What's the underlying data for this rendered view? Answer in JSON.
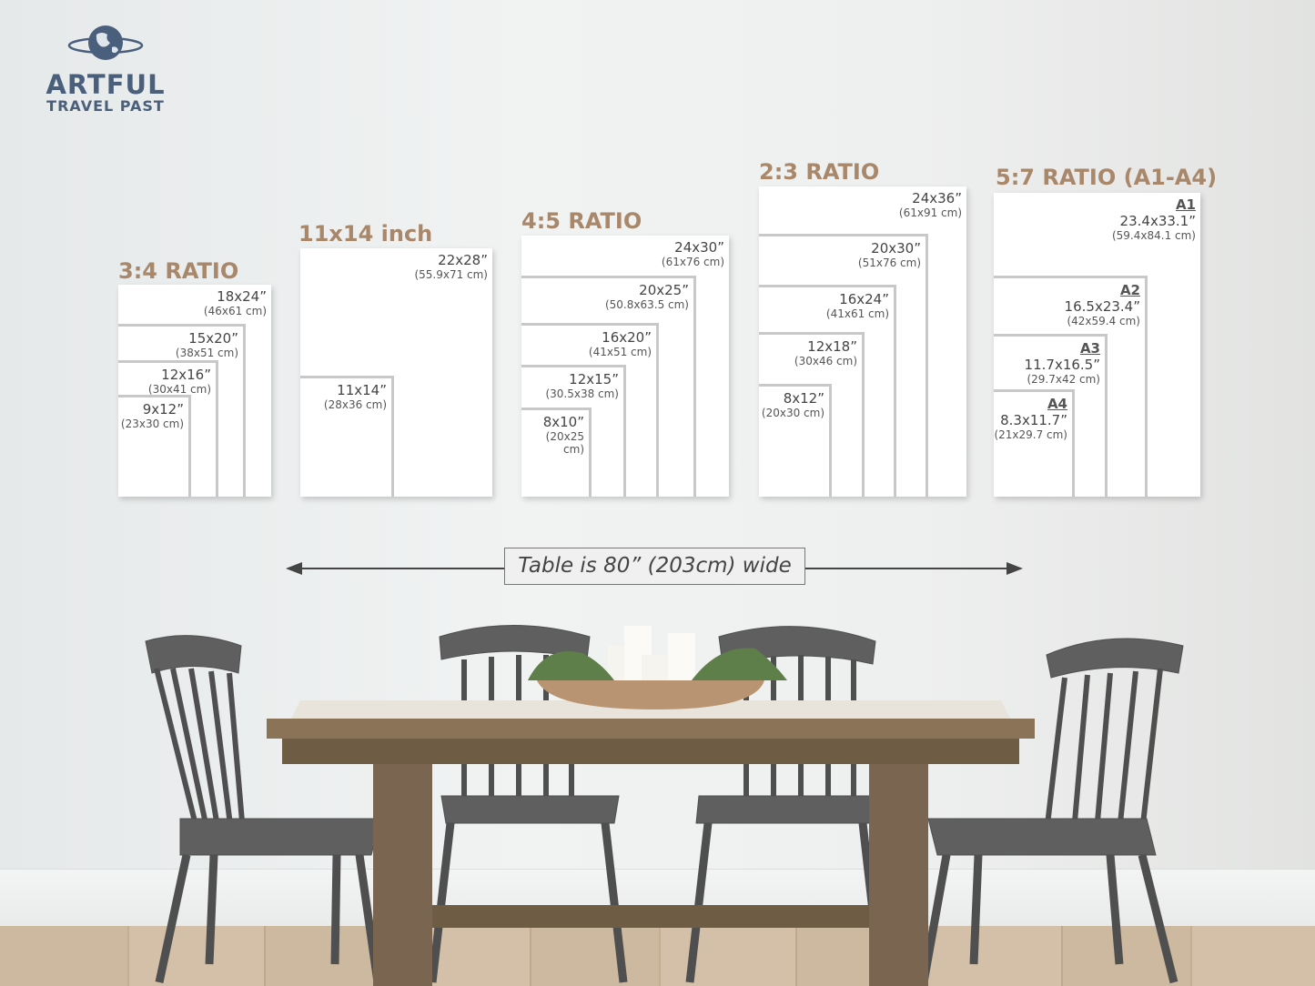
{
  "logo": {
    "line1": "ARTFUL",
    "line2": "TRAVEL PAST",
    "icon": "globe-icon"
  },
  "groups": [
    {
      "label": "3:4 RATIO",
      "sizes": [
        {
          "in": "18x24”",
          "cm": "(46x61 cm)"
        },
        {
          "in": "15x20”",
          "cm": "(38x51 cm)"
        },
        {
          "in": "12x16”",
          "cm": "(30x41 cm)"
        },
        {
          "in": "9x12”",
          "cm": "(23x30 cm)"
        }
      ]
    },
    {
      "label": "11x14 inch",
      "sizes": [
        {
          "in": "22x28”",
          "cm": "(55.9x71 cm)"
        },
        {
          "in": "11x14”",
          "cm": "(28x36 cm)"
        }
      ]
    },
    {
      "label": "4:5 RATIO",
      "sizes": [
        {
          "in": "24x30”",
          "cm": "(61x76 cm)"
        },
        {
          "in": "20x25”",
          "cm": "(50.8x63.5 cm)"
        },
        {
          "in": "16x20”",
          "cm": "(41x51 cm)"
        },
        {
          "in": "12x15”",
          "cm": "(30.5x38 cm)"
        },
        {
          "in": "8x10”",
          "cm": "(20x25 cm)"
        }
      ]
    },
    {
      "label": "2:3 RATIO",
      "sizes": [
        {
          "in": "24x36”",
          "cm": "(61x91 cm)"
        },
        {
          "in": "20x30”",
          "cm": "(51x76 cm)"
        },
        {
          "in": "16x24”",
          "cm": "(41x61 cm)"
        },
        {
          "in": "12x18”",
          "cm": "(30x46 cm)"
        },
        {
          "in": "8x12”",
          "cm": "(20x30 cm)"
        }
      ]
    },
    {
      "label": "5:7 RATIO (A1-A4)",
      "sizes": [
        {
          "a": "A1",
          "in": "23.4x33.1”",
          "cm": "(59.4x84.1 cm)"
        },
        {
          "a": "A2",
          "in": "16.5x23.4”",
          "cm": "(42x59.4 cm)"
        },
        {
          "a": "A3",
          "in": "11.7x16.5”",
          "cm": "(29.7x42 cm)"
        },
        {
          "a": "A4",
          "in": "8.3x11.7”",
          "cm": "(21x29.7 cm)"
        }
      ]
    }
  ],
  "table_width_label": "Table is 80” (203cm) wide",
  "colors": {
    "label": "#a9876a",
    "logo": "#4a5f7c"
  }
}
